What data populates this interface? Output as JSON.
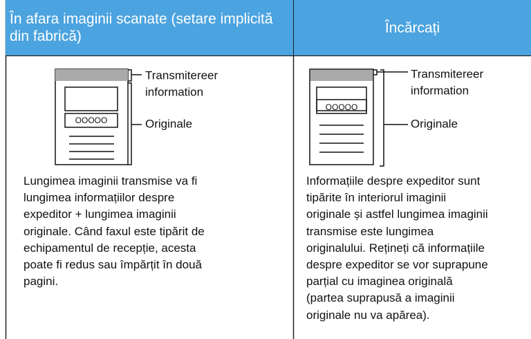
{
  "columns": [
    {
      "header": "În afara imaginii scanate (setare implicită din fabrică)",
      "diagram": {
        "sender_label": [
          "Transmitereer",
          "information"
        ],
        "original_label": "Originale",
        "button_text": "OOOOO"
      },
      "body": [
        "Lungimea imaginii transmise va fi",
        "lungimea informațiilor despre",
        "expeditor + lungimea imaginii",
        "originale. Când faxul este tipărit de",
        "echipamentul de recepție, acesta",
        "poate fi redus sau împărțit în două",
        "pagini."
      ]
    },
    {
      "header": "Încărcați",
      "diagram": {
        "sender_label": [
          "Transmitereer",
          "information"
        ],
        "original_label": "Originale",
        "button_text": "OOOOO"
      },
      "body": [
        "Informațiile despre expeditor sunt",
        "tipărite în interiorul imaginii",
        "originale și astfel lungimea imaginii",
        "transmise este lungimea",
        "originalului. Rețineți că informațiile",
        "despre expeditor se vor suprapune",
        "parțial cu imaginea originală",
        "(partea suprapusă a imaginii",
        "originale nu va apărea)."
      ]
    }
  ]
}
